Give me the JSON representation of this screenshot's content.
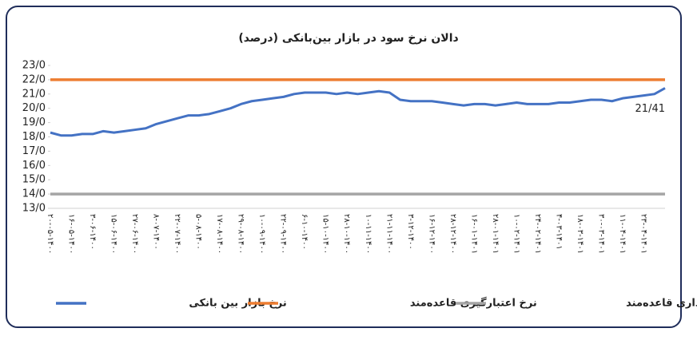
{
  "chart_data": {
    "type": "line",
    "title": "دالان نرخ سود در بازار بین‌بانکی (درصد)",
    "annotation": "21/41",
    "categories": [
      "۲۰-۰۵-۱۴۰۰",
      null,
      "۱۶-۰۵-۱۴۰۰",
      null,
      "۳-۰۶-۱۴۰۰",
      null,
      "۱۵-۰۶-۱۴۰۰",
      null,
      "۲۷-۰۶-۱۴۰۰",
      null,
      "۸-۰۷-۱۴۰۰",
      null,
      "۲۲-۰۷-۱۴۰۰",
      null,
      "۵-۰۸-۱۴۰۰",
      null,
      "۱۷-۰۸-۱۴۰۰",
      null,
      "۲۹-۰۸-۱۴۰۰",
      null,
      "۱۰-۰۹-۱۴۰۰",
      null,
      "۲۲-۰۹-۱۴۰۰",
      null,
      "۶-۱۰-۱۴۰۰",
      null,
      "۱۵-۱۰-۱۴۰۰",
      null,
      "۲۸-۱۰-۱۴۰۰",
      null,
      "۱۰-۱۱-۱۴۰۰",
      null,
      "۲۱-۱۱-۱۴۰۰",
      null,
      "۳-۱۲-۱۴۰۰",
      null,
      "۱۶-۱۲-۱۴۰۰",
      null,
      "۲۸-۱۲-۱۴۰۰",
      null,
      "۱۶-۰۱-۱۴۰۱",
      null,
      "۲۸-۰۱-۱۴۰۱",
      null,
      "۱۰-۰۲-۱۴۰۱",
      null,
      "۲۴-۰۲-۱۴۰۱",
      null,
      "۴-۰۳-۱۴۰۱",
      null,
      "۱۸-۰۳-۱۴۰۱",
      null,
      "۳۰-۰۳-۱۴۰۱",
      null,
      "۱۱-۰۴-۱۴۰۱",
      null,
      "۲۳-۰۴-۱۴۰۱",
      null,
      null
    ],
    "series": [
      {
        "name": "نرخ بازار بین بانکی",
        "color": "#4472c4",
        "values": [
          18.3,
          18.1,
          18.1,
          18.2,
          18.2,
          18.4,
          18.3,
          18.4,
          18.5,
          18.6,
          18.9,
          19.1,
          19.3,
          19.5,
          19.5,
          19.6,
          19.8,
          20.0,
          20.3,
          20.5,
          20.6,
          20.7,
          20.8,
          21.0,
          21.1,
          21.1,
          21.1,
          21.0,
          21.1,
          21.0,
          21.1,
          21.2,
          21.1,
          20.6,
          20.5,
          20.5,
          20.5,
          20.4,
          20.3,
          20.2,
          20.3,
          20.3,
          20.2,
          20.3,
          20.4,
          20.3,
          20.3,
          20.3,
          20.4,
          20.4,
          20.5,
          20.6,
          20.6,
          20.5,
          20.7,
          20.8,
          20.9,
          21.0,
          21.41
        ]
      },
      {
        "name": "نرخ اعتبارگیری قاعده‌مند",
        "color": "#ed7d31",
        "values": [
          22,
          22,
          22,
          22,
          22,
          22,
          22,
          22,
          22,
          22,
          22,
          22,
          22,
          22,
          22,
          22,
          22,
          22,
          22,
          22,
          22,
          22,
          22,
          22,
          22,
          22,
          22,
          22,
          22,
          22,
          22,
          22,
          22,
          22,
          22,
          22,
          22,
          22,
          22,
          22,
          22,
          22,
          22,
          22,
          22,
          22,
          22,
          22,
          22,
          22,
          22,
          22,
          22,
          22,
          22,
          22,
          22,
          22,
          22
        ]
      },
      {
        "name": "نرخ سپرده‌گذاری قاعده‌مند",
        "color": "#a5a5a5",
        "values": [
          14,
          14,
          14,
          14,
          14,
          14,
          14,
          14,
          14,
          14,
          14,
          14,
          14,
          14,
          14,
          14,
          14,
          14,
          14,
          14,
          14,
          14,
          14,
          14,
          14,
          14,
          14,
          14,
          14,
          14,
          14,
          14,
          14,
          14,
          14,
          14,
          14,
          14,
          14,
          14,
          14,
          14,
          14,
          14,
          14,
          14,
          14,
          14,
          14,
          14,
          14,
          14,
          14,
          14,
          14,
          14,
          14,
          14,
          14
        ]
      }
    ],
    "ylim": [
      13,
      23
    ],
    "yticks": [
      {
        "value": 13,
        "label": "13/0"
      },
      {
        "value": 14,
        "label": "14/0"
      },
      {
        "value": 15,
        "label": "15/0"
      },
      {
        "value": 16,
        "label": "16/0"
      },
      {
        "value": 17,
        "label": "17/0"
      },
      {
        "value": 18,
        "label": "18/0"
      },
      {
        "value": 19,
        "label": "19/0"
      },
      {
        "value": 20,
        "label": "20/0"
      },
      {
        "value": 21,
        "label": "21/0"
      },
      {
        "value": 22,
        "label": "22/0"
      },
      {
        "value": 23,
        "label": "23/0"
      }
    ],
    "grid": false
  }
}
